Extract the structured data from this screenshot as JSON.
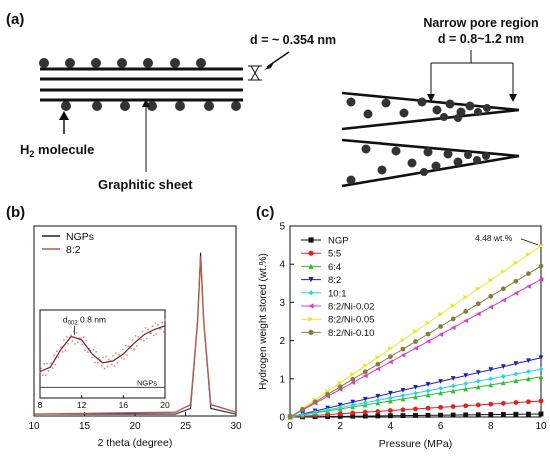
{
  "panels": {
    "a": {
      "label": "(a)",
      "d_label": "d = ~ 0.354 nm",
      "pore_title": "Narrow pore region",
      "pore_d": "d = 0.8~1.2 nm",
      "h2_main": "H",
      "h2_sub": "2",
      "h2_rest": " molecule",
      "sheet_label": "Graphitic sheet"
    },
    "b": {
      "label": "(b)"
    },
    "c": {
      "label": "(c)"
    }
  },
  "colors": {
    "ink": "#111111",
    "b_ngps": "#1f1f3f",
    "b_82": "#b85a4a",
    "c_NGP": "#111111",
    "c_55": "#e32020",
    "c_64": "#2bc22b",
    "c_82": "#1f1fb8",
    "c_101": "#22d7e5",
    "c_82ni002": "#d63cc8",
    "c_82ni005": "#e8e82a",
    "c_82ni010": "#8a7d3a"
  },
  "chart_data": [
    {
      "type": "line",
      "xlabel": "2 theta (degree)",
      "ylabel": "",
      "xlim": [
        10,
        30
      ],
      "xticks": [
        "10",
        "15",
        "20",
        "25",
        "30"
      ],
      "legend_position": "top-left",
      "series": [
        {
          "name": "NGPs",
          "peak_x": 26.5,
          "peak_height": 0.86,
          "x": [
            10,
            24,
            25.5,
            26.2,
            26.5,
            26.8,
            27.5,
            30
          ],
          "y": [
            0.01,
            0.01,
            0.04,
            0.5,
            0.86,
            0.5,
            0.04,
            0.01
          ]
        },
        {
          "name": "8:2",
          "peak_x": 26.5,
          "peak_height": 0.84,
          "x": [
            10,
            24,
            25.5,
            26.2,
            26.5,
            26.8,
            27.5,
            30
          ],
          "y": [
            0.01,
            0.02,
            0.06,
            0.5,
            0.84,
            0.5,
            0.06,
            0.02
          ]
        }
      ],
      "inset": {
        "xlim": [
          8,
          20
        ],
        "xticks": [
          "8",
          "12",
          "16",
          "20"
        ],
        "annotation_main": "d",
        "annotation_sub": "002",
        "annotation_rest": " 0.8 nm",
        "inner_label": "NGPs",
        "curve_82": {
          "x": [
            8,
            9,
            10,
            11,
            12,
            13,
            14,
            15,
            16,
            17,
            18,
            19,
            20
          ],
          "y": [
            0.3,
            0.35,
            0.55,
            0.7,
            0.66,
            0.5,
            0.4,
            0.42,
            0.5,
            0.62,
            0.72,
            0.78,
            0.82
          ]
        },
        "curve_ngps": {
          "x": [
            8,
            12,
            16,
            20
          ],
          "y": [
            0.12,
            0.12,
            0.12,
            0.12
          ]
        }
      }
    },
    {
      "type": "line",
      "xlabel": "Pressure (MPa)",
      "ylabel": "Hydrogen weight stored (wt.%)",
      "xlim": [
        0,
        10
      ],
      "ylim": [
        0,
        5
      ],
      "xticks": [
        "0",
        "2",
        "4",
        "6",
        "8",
        "10"
      ],
      "yticks": [
        "0",
        "1",
        "2",
        "3",
        "4",
        "5"
      ],
      "legend_position": "top-left",
      "annotation": "4.48 wt.%",
      "annotation_x": 10,
      "annotation_y": 4.48,
      "series": [
        {
          "name": "NGP",
          "marker": "square",
          "color_key": "c_NGP",
          "x": [
            0,
            10
          ],
          "y": [
            0,
            0.08
          ]
        },
        {
          "name": "5:5",
          "marker": "circle",
          "color_key": "c_55",
          "x": [
            0,
            10
          ],
          "y": [
            0,
            0.42
          ]
        },
        {
          "name": "6:4",
          "marker": "triangle-up",
          "color_key": "c_64",
          "x": [
            0,
            10
          ],
          "y": [
            0,
            1.05
          ]
        },
        {
          "name": "8:2",
          "marker": "triangle-down",
          "color_key": "c_82",
          "x": [
            0,
            10
          ],
          "y": [
            0,
            1.55
          ]
        },
        {
          "name": "10:1",
          "marker": "diamond",
          "color_key": "c_101",
          "x": [
            0,
            10
          ],
          "y": [
            0,
            1.25
          ]
        },
        {
          "name": "8:2/Ni-0.02",
          "marker": "triangle-left",
          "color_key": "c_82ni002",
          "x": [
            0,
            10
          ],
          "y": [
            0,
            3.6
          ]
        },
        {
          "name": "8:2/Ni-0.05",
          "marker": "triangle-right",
          "color_key": "c_82ni005",
          "x": [
            0,
            10
          ],
          "y": [
            0,
            4.48
          ]
        },
        {
          "name": "8:2/Ni-0.10",
          "marker": "circle",
          "color_key": "c_82ni010",
          "x": [
            0,
            10
          ],
          "y": [
            0,
            3.95
          ]
        }
      ]
    }
  ]
}
